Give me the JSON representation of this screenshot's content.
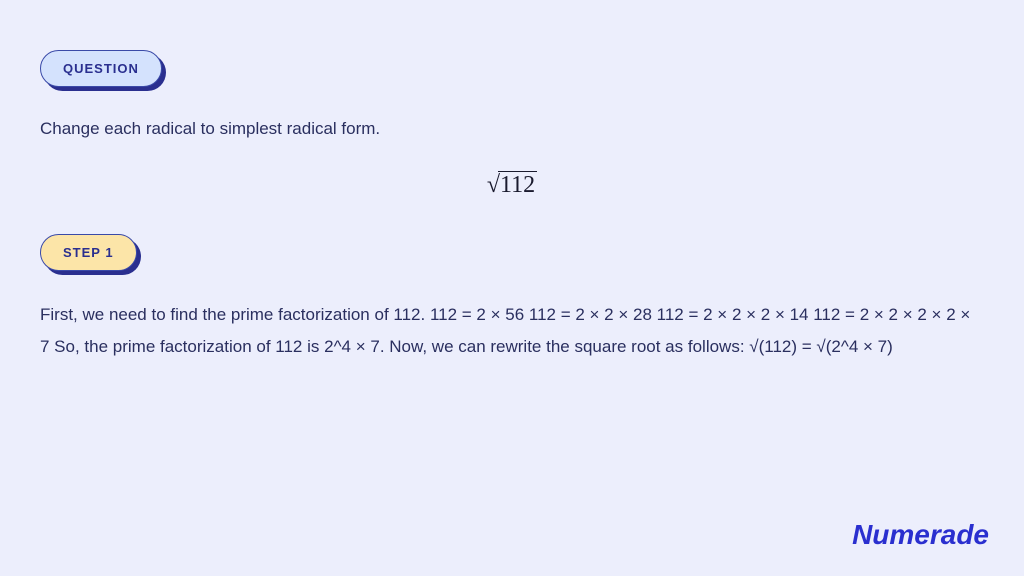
{
  "colors": {
    "background": "#eceefc",
    "badge_question_bg": "#d4e2fd",
    "badge_step_bg": "#fce5a8",
    "badge_border": "#3a4aa8",
    "badge_shadow": "#2a2f8f",
    "badge_text": "#2a2f8f",
    "body_text": "#2a2f5f",
    "formula_text": "#1a1a2e",
    "brand_color": "#2a2fcf"
  },
  "typography": {
    "body_font_size": 17,
    "badge_font_size": 13,
    "formula_font_size": 24,
    "brand_font_size": 28,
    "body_line_height": 1.9
  },
  "question": {
    "badge_label": "QUESTION",
    "text": "Change each radical to simplest radical form.",
    "formula_radicand": "112"
  },
  "step": {
    "badge_label": "STEP 1",
    "text": "First, we need to find the prime factorization of 112. 112 = 2 × 56 112 = 2 × 2 × 28 112 = 2 × 2 × 2 × 14 112 = 2 × 2 × 2 × 2 × 7 So, the prime factorization of 112 is 2^4 × 7. Now, we can rewrite the square root as follows: √(112) = √(2^4 × 7)"
  },
  "brand": "Numerade"
}
